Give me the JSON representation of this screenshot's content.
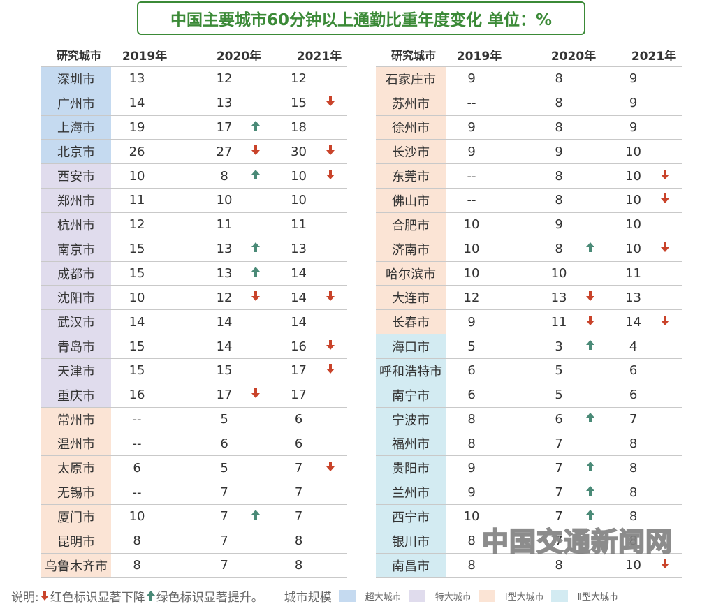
{
  "title": "中国主要城市60分钟以上通勤比重年度变化  单位：%",
  "headers": {
    "city": "研究城市",
    "y2019": "2019年",
    "y2020": "2020年",
    "y2021": "2021年"
  },
  "colors": {
    "up": "#4a8a77",
    "down": "#c9432a",
    "super": "#c5daf0",
    "special": "#e0dced",
    "type1": "#fbe4d5",
    "type2": "#d3ebf2",
    "title": "#3b8a37"
  },
  "left_rows": [
    {
      "city": "深圳市",
      "size": "super",
      "y2019": "13",
      "y2020": "12",
      "a2020": "",
      "y2021": "12",
      "a2021": ""
    },
    {
      "city": "广州市",
      "size": "super",
      "y2019": "14",
      "y2020": "13",
      "a2020": "",
      "y2021": "15",
      "a2021": "down"
    },
    {
      "city": "上海市",
      "size": "super",
      "y2019": "19",
      "y2020": "17",
      "a2020": "up",
      "y2021": "18",
      "a2021": ""
    },
    {
      "city": "北京市",
      "size": "super",
      "y2019": "26",
      "y2020": "27",
      "a2020": "down",
      "y2021": "30",
      "a2021": "down"
    },
    {
      "city": "西安市",
      "size": "special",
      "y2019": "10",
      "y2020": "8",
      "a2020": "up",
      "y2021": "10",
      "a2021": "down"
    },
    {
      "city": "郑州市",
      "size": "special",
      "y2019": "11",
      "y2020": "10",
      "a2020": "",
      "y2021": "10",
      "a2021": ""
    },
    {
      "city": "杭州市",
      "size": "special",
      "y2019": "12",
      "y2020": "11",
      "a2020": "",
      "y2021": "11",
      "a2021": ""
    },
    {
      "city": "南京市",
      "size": "special",
      "y2019": "15",
      "y2020": "13",
      "a2020": "up",
      "y2021": "13",
      "a2021": ""
    },
    {
      "city": "成都市",
      "size": "special",
      "y2019": "15",
      "y2020": "13",
      "a2020": "up",
      "y2021": "14",
      "a2021": ""
    },
    {
      "city": "沈阳市",
      "size": "special",
      "y2019": "10",
      "y2020": "12",
      "a2020": "down",
      "y2021": "14",
      "a2021": "down"
    },
    {
      "city": "武汉市",
      "size": "special",
      "y2019": "14",
      "y2020": "14",
      "a2020": "",
      "y2021": "14",
      "a2021": ""
    },
    {
      "city": "青岛市",
      "size": "special",
      "y2019": "15",
      "y2020": "14",
      "a2020": "",
      "y2021": "16",
      "a2021": "down"
    },
    {
      "city": "天津市",
      "size": "special",
      "y2019": "15",
      "y2020": "15",
      "a2020": "",
      "y2021": "17",
      "a2021": "down"
    },
    {
      "city": "重庆市",
      "size": "special",
      "y2019": "16",
      "y2020": "17",
      "a2020": "down",
      "y2021": "17",
      "a2021": ""
    },
    {
      "city": "常州市",
      "size": "type1",
      "y2019": "--",
      "y2020": "5",
      "a2020": "",
      "y2021": "6",
      "a2021": ""
    },
    {
      "city": "温州市",
      "size": "type1",
      "y2019": "--",
      "y2020": "6",
      "a2020": "",
      "y2021": "6",
      "a2021": ""
    },
    {
      "city": "太原市",
      "size": "type1",
      "y2019": "6",
      "y2020": "5",
      "a2020": "",
      "y2021": "7",
      "a2021": "down"
    },
    {
      "city": "无锡市",
      "size": "type1",
      "y2019": "--",
      "y2020": "7",
      "a2020": "",
      "y2021": "7",
      "a2021": ""
    },
    {
      "city": "厦门市",
      "size": "type1",
      "y2019": "10",
      "y2020": "7",
      "a2020": "up",
      "y2021": "7",
      "a2021": ""
    },
    {
      "city": "昆明市",
      "size": "type1",
      "y2019": "8",
      "y2020": "7",
      "a2020": "",
      "y2021": "8",
      "a2021": ""
    },
    {
      "city": "乌鲁木齐市",
      "size": "type1",
      "y2019": "8",
      "y2020": "7",
      "a2020": "",
      "y2021": "8",
      "a2021": ""
    }
  ],
  "right_rows": [
    {
      "city": "石家庄市",
      "size": "type1",
      "y2019": "9",
      "y2020": "8",
      "a2020": "",
      "y2021": "9",
      "a2021": ""
    },
    {
      "city": "苏州市",
      "size": "type1",
      "y2019": "--",
      "y2020": "8",
      "a2020": "",
      "y2021": "9",
      "a2021": ""
    },
    {
      "city": "徐州市",
      "size": "type1",
      "y2019": "9",
      "y2020": "8",
      "a2020": "",
      "y2021": "9",
      "a2021": ""
    },
    {
      "city": "长沙市",
      "size": "type1",
      "y2019": "9",
      "y2020": "9",
      "a2020": "",
      "y2021": "10",
      "a2021": ""
    },
    {
      "city": "东莞市",
      "size": "type1",
      "y2019": "--",
      "y2020": "8",
      "a2020": "",
      "y2021": "10",
      "a2021": "down"
    },
    {
      "city": "佛山市",
      "size": "type1",
      "y2019": "--",
      "y2020": "8",
      "a2020": "",
      "y2021": "10",
      "a2021": "down"
    },
    {
      "city": "合肥市",
      "size": "type1",
      "y2019": "10",
      "y2020": "9",
      "a2020": "",
      "y2021": "10",
      "a2021": ""
    },
    {
      "city": "济南市",
      "size": "type1",
      "y2019": "10",
      "y2020": "8",
      "a2020": "up",
      "y2021": "10",
      "a2021": "down"
    },
    {
      "city": "哈尔滨市",
      "size": "type1",
      "y2019": "10",
      "y2020": "10",
      "a2020": "",
      "y2021": "11",
      "a2021": ""
    },
    {
      "city": "大连市",
      "size": "type1",
      "y2019": "12",
      "y2020": "13",
      "a2020": "down",
      "y2021": "13",
      "a2021": ""
    },
    {
      "city": "长春市",
      "size": "type1",
      "y2019": "9",
      "y2020": "11",
      "a2020": "down",
      "y2021": "14",
      "a2021": "down"
    },
    {
      "city": "海口市",
      "size": "type2",
      "y2019": "5",
      "y2020": "3",
      "a2020": "up",
      "y2021": "4",
      "a2021": ""
    },
    {
      "city": "呼和浩特市",
      "size": "type2",
      "y2019": "6",
      "y2020": "5",
      "a2020": "",
      "y2021": "6",
      "a2021": ""
    },
    {
      "city": "南宁市",
      "size": "type2",
      "y2019": "6",
      "y2020": "5",
      "a2020": "",
      "y2021": "6",
      "a2021": ""
    },
    {
      "city": "宁波市",
      "size": "type2",
      "y2019": "8",
      "y2020": "6",
      "a2020": "up",
      "y2021": "7",
      "a2021": ""
    },
    {
      "city": "福州市",
      "size": "type2",
      "y2019": "8",
      "y2020": "7",
      "a2020": "",
      "y2021": "8",
      "a2021": ""
    },
    {
      "city": "贵阳市",
      "size": "type2",
      "y2019": "9",
      "y2020": "7",
      "a2020": "up",
      "y2021": "8",
      "a2021": ""
    },
    {
      "city": "兰州市",
      "size": "type2",
      "y2019": "9",
      "y2020": "7",
      "a2020": "up",
      "y2021": "8",
      "a2021": ""
    },
    {
      "city": "西宁市",
      "size": "type2",
      "y2019": "10",
      "y2020": "7",
      "a2020": "up",
      "y2021": "8",
      "a2021": ""
    },
    {
      "city": "银川市",
      "size": "type2",
      "y2019": "8",
      "y2020": "7",
      "a2020": "",
      "y2021": "8",
      "a2021": ""
    },
    {
      "city": "南昌市",
      "size": "type2",
      "y2019": "8",
      "y2020": "8",
      "a2020": "",
      "y2021": "10",
      "a2021": "down"
    }
  ],
  "footer": {
    "note_prefix": "说明:",
    "note_red": "红色标识显著下降",
    "note_green": "绿色标识显著提升。",
    "legend_title": "城市规模",
    "legend": [
      {
        "key": "super",
        "label": "超大城市"
      },
      {
        "key": "special",
        "label": "特大城市"
      },
      {
        "key": "type1",
        "label": "Ⅰ型大城市"
      },
      {
        "key": "type2",
        "label": "Ⅱ型大城市"
      }
    ]
  },
  "watermark": "中国交通新闻网"
}
